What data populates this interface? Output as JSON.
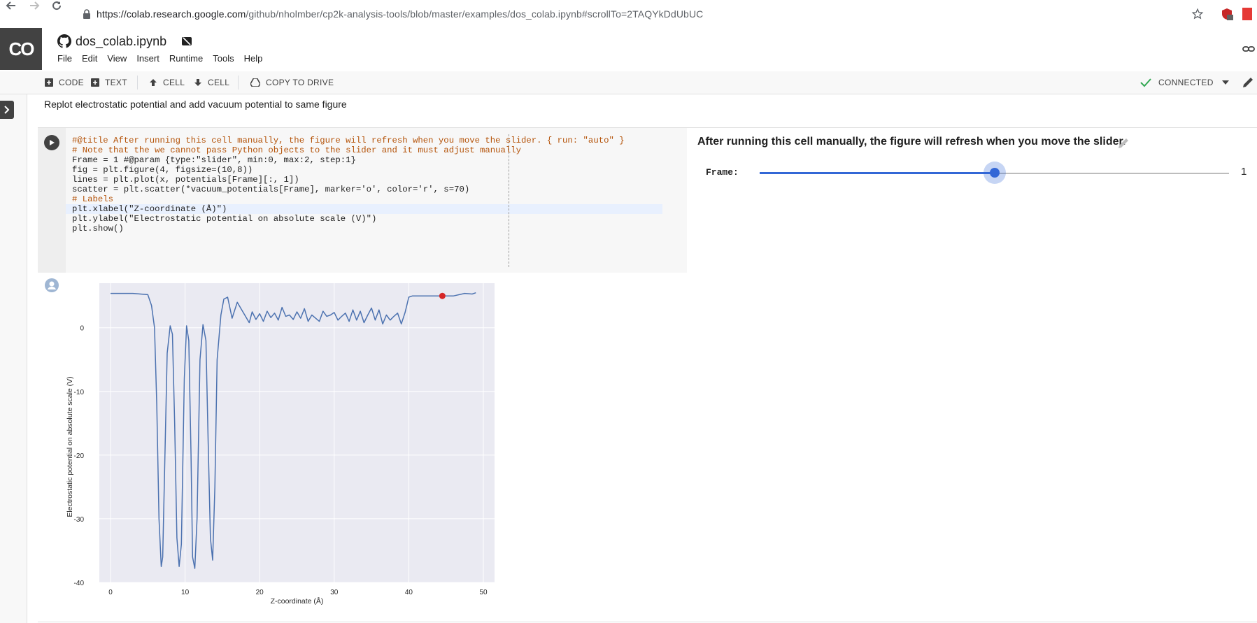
{
  "browser": {
    "url_host": "https://colab.research.google.com",
    "url_path": "/github/nholmber/cp2k-analysis-tools/blob/master/examples/dos_colab.ipynb#scrollTo=2TAQYkDdUbUC"
  },
  "app": {
    "logo": "CO",
    "file_name": "dos_colab.ipynb",
    "menu": [
      "File",
      "Edit",
      "View",
      "Insert",
      "Runtime",
      "Tools",
      "Help"
    ]
  },
  "toolbar": {
    "add_code": "CODE",
    "add_text": "TEXT",
    "cell_up": "CELL",
    "cell_down": "CELL",
    "copy_to_drive": "COPY TO DRIVE",
    "status": "CONNECTED"
  },
  "text_cell": "Replot electrostatic potential and add vacuum potential to same figure",
  "code": {
    "lines": [
      "#@title After running this cell manually, the figure will refresh when you move the slider. { run: \"auto\" }",
      "",
      "# Note that the we cannot pass Python objects to the slider and it must adjust manually",
      "Frame = 1 #@param {type:\"slider\", min:0, max:2, step:1}",
      "",
      "fig = plt.figure(4, figsize=(10,8))",
      "lines = plt.plot(x, potentials[Frame][:, 1])",
      "scatter = plt.scatter(*vacuum_potentials[Frame], marker='o', color='r', s=70)",
      "",
      "# Labels",
      "plt.xlabel(\"Z-coordinate (Å)\")",
      "plt.ylabel(\"Electrostatic potential on absolute scale (V)\")",
      "plt.show()"
    ]
  },
  "form": {
    "title": "After running this cell manually, the figure will refresh when you move the slider.",
    "param_label": "Frame:",
    "slider_value": "1",
    "slider_min": 0,
    "slider_max": 2,
    "slider_fraction": 0.5
  },
  "icons": {
    "back": "arrow-left-icon",
    "forward": "arrow-right-icon",
    "reload": "reload-icon",
    "lock": "lock-icon",
    "star": "star-icon",
    "github": "github-icon",
    "drive-offline": "drive-icon",
    "link": "link-icon",
    "edit": "pencil-icon",
    "run": "play-icon",
    "connected": "check-icon"
  },
  "colors": {
    "accent": "#3367d6",
    "line": "#4c72b0",
    "marker": "#d62728",
    "plot_bg": "#eaeaf2"
  },
  "chart_data": {
    "type": "line",
    "xlabel": "Z-coordinate (Å)",
    "ylabel": "Electrostatic potential on absolute scale (V)",
    "xlim": [
      -1.5,
      51.5
    ],
    "ylim": [
      -40,
      7
    ],
    "xticks": [
      "0",
      "10",
      "20",
      "30",
      "40",
      "50"
    ],
    "yticks": [
      "0",
      "-10",
      "-20",
      "-30",
      "-40"
    ],
    "xtick_values": [
      0,
      10,
      20,
      30,
      40,
      50
    ],
    "ytick_values": [
      0,
      -10,
      -20,
      -30,
      -40
    ],
    "grid": true,
    "series": [
      {
        "x": [
          0,
          3,
          5,
          5.5,
          5.9,
          6.2,
          6.5,
          6.8,
          7.0,
          7.3,
          7.6,
          8.0,
          8.3,
          8.6,
          8.9,
          9.2,
          9.5,
          9.9,
          10.2,
          10.5,
          10.8,
          11.0,
          11.3,
          11.6,
          12.0,
          12.4,
          12.8,
          13.1,
          13.4,
          13.7,
          14.0,
          14.3,
          14.8,
          15.2,
          15.7,
          16.3,
          17.0,
          17.5,
          18.0,
          18.6,
          19.0,
          19.5,
          20.0,
          20.5,
          21.0,
          21.5,
          22.0,
          22.5,
          23.0,
          23.5,
          24.0,
          24.5,
          25.0,
          25.5,
          26.0,
          26.5,
          27.0,
          27.5,
          28.0,
          28.5,
          29.0,
          29.5,
          30.0,
          30.5,
          31.0,
          31.5,
          32.0,
          32.5,
          33.0,
          33.5,
          34.0,
          34.5,
          35.0,
          35.5,
          36.0,
          36.5,
          37.0,
          37.5,
          38.0,
          38.5,
          39.0,
          39.5,
          40.0,
          40.5,
          41.5,
          43.0,
          46.0,
          47.5,
          48.5,
          49
        ],
        "y": [
          5.4,
          5.4,
          5.2,
          3.5,
          0,
          -12,
          -30,
          -37.5,
          -36,
          -20,
          -4,
          0.3,
          -1,
          -15,
          -33,
          -37.5,
          -34,
          -8,
          0.3,
          -2,
          -20,
          -36,
          -37.8,
          -30,
          -5,
          0.5,
          -2,
          -18,
          -33,
          -36.5,
          -25,
          -5,
          2,
          4.5,
          4.8,
          1.5,
          4.0,
          3.0,
          2.0,
          0.8,
          2.5,
          1.3,
          2.2,
          1.0,
          2.6,
          1.6,
          2.3,
          1.2,
          3.2,
          1.8,
          2.0,
          1.3,
          2.5,
          1.5,
          3.0,
          1.0,
          2.0,
          1.5,
          1.0,
          2.6,
          1.8,
          2.0,
          2.4,
          1.2,
          1.8,
          2.3,
          1.0,
          2.8,
          1.2,
          2.6,
          0.8,
          2.0,
          3.1,
          1.2,
          2.8,
          0.6,
          2.0,
          1.2,
          1.8,
          2.3,
          0.6,
          2.4,
          4.8,
          5.0,
          5.0,
          5.0,
          5.0,
          5.4,
          5.3,
          5.5
        ]
      }
    ],
    "scatter": [
      {
        "x": 44.5,
        "y": 5.0
      }
    ]
  }
}
